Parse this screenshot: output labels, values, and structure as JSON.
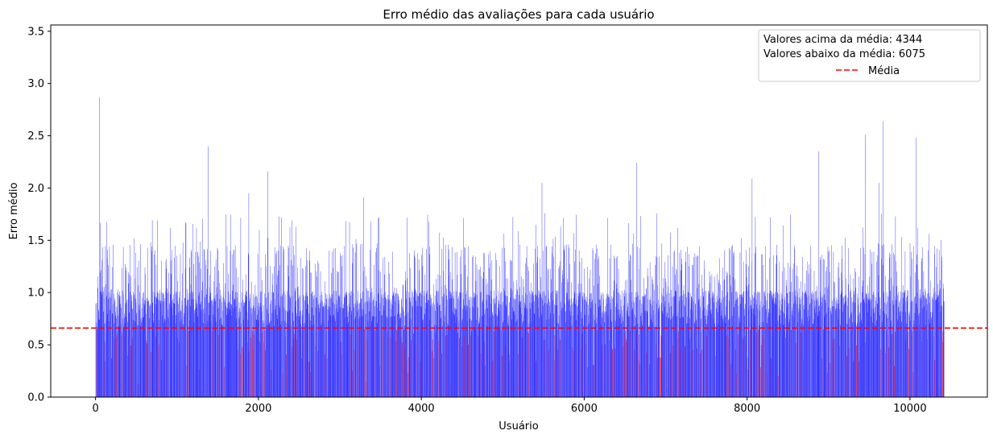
{
  "chart_data": {
    "type": "bar",
    "title": "Erro médio das avaliações para cada usuário",
    "xlabel": "Usuário",
    "ylabel": "Erro médio",
    "xlim": [
      -550,
      10950
    ],
    "ylim": [
      0,
      3.56
    ],
    "xticks": [
      0,
      2000,
      4000,
      6000,
      8000,
      10000
    ],
    "yticks": [
      0.0,
      0.5,
      1.0,
      1.5,
      2.0,
      2.5,
      3.0,
      3.5
    ],
    "xtick_labels": [
      "0",
      "2000",
      "4000",
      "6000",
      "8000",
      "10000"
    ],
    "ytick_labels": [
      "0.0",
      "0.5",
      "1.0",
      "1.5",
      "2.0",
      "2.5",
      "3.0",
      "3.5"
    ],
    "mean": 0.66,
    "n_users": 10419,
    "count_above_mean": 4344,
    "count_below_mean": 6075,
    "grid": false,
    "legend_position": "top-right",
    "legend": {
      "line1": "Valores acima da média: 4344",
      "line2": "Valores abaixo da média: 6075",
      "mean_label": "Média"
    },
    "colors": {
      "above": "#0000ff",
      "below": "#ff0000",
      "mean_line": "#ff0000"
    },
    "notable_peaks": [
      {
        "x": 50,
        "y": 2.87
      },
      {
        "x": 1380,
        "y": 2.4
      },
      {
        "x": 1880,
        "y": 1.95
      },
      {
        "x": 2110,
        "y": 2.16
      },
      {
        "x": 2280,
        "y": 1.72
      },
      {
        "x": 2410,
        "y": 1.69
      },
      {
        "x": 3290,
        "y": 1.91
      },
      {
        "x": 5480,
        "y": 2.05
      },
      {
        "x": 6640,
        "y": 2.24
      },
      {
        "x": 8060,
        "y": 2.09
      },
      {
        "x": 8880,
        "y": 2.35
      },
      {
        "x": 9450,
        "y": 2.51
      },
      {
        "x": 9670,
        "y": 2.64
      },
      {
        "x": 10070,
        "y": 2.48
      },
      {
        "x": 9620,
        "y": 2.05
      },
      {
        "x": 9820,
        "y": 1.73
      }
    ]
  }
}
